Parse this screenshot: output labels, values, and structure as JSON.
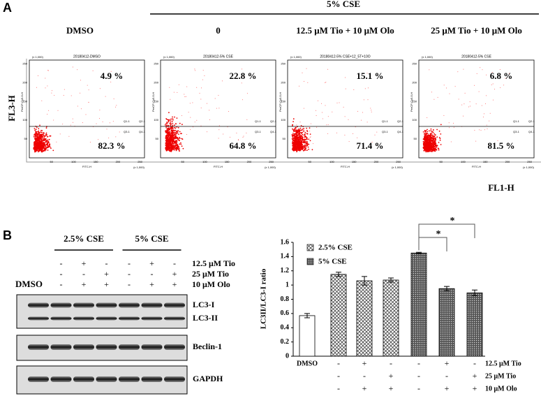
{
  "panel_a": {
    "label": "A",
    "group_header": "5% CSE",
    "y_axis_label": "FL3-H",
    "x_axis_label": "FL1-H",
    "plot_y_label": "PerCP-Cy5-5-H",
    "plot_x_label": "FITC-H",
    "axis_tick_labels": [
      "50",
      "100",
      "150",
      "200",
      "250"
    ],
    "axis_scale_label": "(x 1,000)",
    "quadrant_labels": [
      "Q1-1",
      "Q2-1",
      "Q3-1",
      "Q4-1"
    ],
    "plots": [
      {
        "header": "DMSO",
        "file": "20180412-DMSO",
        "upper": "4.9 %",
        "lower": "82.3 %"
      },
      {
        "header": "0",
        "file": "20180412-5% CSE",
        "upper": "22.8 %",
        "lower": "64.8 %"
      },
      {
        "header": "12.5 μM Tio + 10 μM Olo",
        "file": "20180412-5% CSE+12_5T+10O",
        "upper": "15.1 %",
        "lower": "71.4 %"
      },
      {
        "header": "25 μM Tio + 10 μM Olo",
        "file": "20180412-5% CSE",
        "upper": "6.8 %",
        "lower": "81.5 %"
      }
    ]
  },
  "panel_b": {
    "label": "B",
    "groups": [
      "2.5% CSE",
      "5% CSE"
    ],
    "control": "DMSO",
    "treatments": [
      {
        "name": "12.5 μM Tio",
        "signs": [
          "-",
          "+",
          "-",
          "-",
          "+",
          "-"
        ]
      },
      {
        "name": "25 μM Tio",
        "signs": [
          "-",
          "-",
          "+",
          "-",
          "-",
          "+"
        ]
      },
      {
        "name": "10 μM Olo",
        "signs": [
          "-",
          "+",
          "+",
          "-",
          "+",
          "+"
        ]
      }
    ],
    "bands": [
      "LC3-I",
      "LC3-II",
      "Beclin-1",
      "GAPDH"
    ]
  },
  "chart_data": {
    "type": "bar",
    "y_label": "LC3II/LC3-I ratio",
    "categories": [
      "DMSO",
      null,
      null,
      null,
      null,
      null,
      null
    ],
    "values": [
      0.57,
      1.15,
      1.06,
      1.07,
      1.45,
      0.95,
      0.89
    ],
    "errors": [
      0.03,
      0.03,
      0.06,
      0.03,
      0.01,
      0.03,
      0.04
    ],
    "bar_patterns": [
      "none",
      "crosshatch",
      "crosshatch",
      "crosshatch",
      "dots",
      "dots",
      "dots"
    ],
    "legend": [
      {
        "name": "2.5% CSE",
        "pattern": "crosshatch"
      },
      {
        "name": "5% CSE",
        "pattern": "dots"
      }
    ],
    "ylim": [
      0,
      1.6
    ],
    "yticks": [
      0,
      0.2,
      0.4,
      0.6,
      0.8,
      1,
      1.2,
      1.4,
      1.6
    ],
    "treatments": [
      {
        "name": "12.5 μM Tio",
        "signs": [
          "-",
          "+",
          "-",
          "-",
          "+",
          "-"
        ]
      },
      {
        "name": "25 μM Tio",
        "signs": [
          "-",
          "-",
          "+",
          "-",
          "-",
          "+"
        ]
      },
      {
        "name": "10 μM Olo",
        "signs": [
          "-",
          "+",
          "+",
          "-",
          "+",
          "+"
        ]
      }
    ],
    "significance_labels": [
      "*",
      "*"
    ]
  }
}
